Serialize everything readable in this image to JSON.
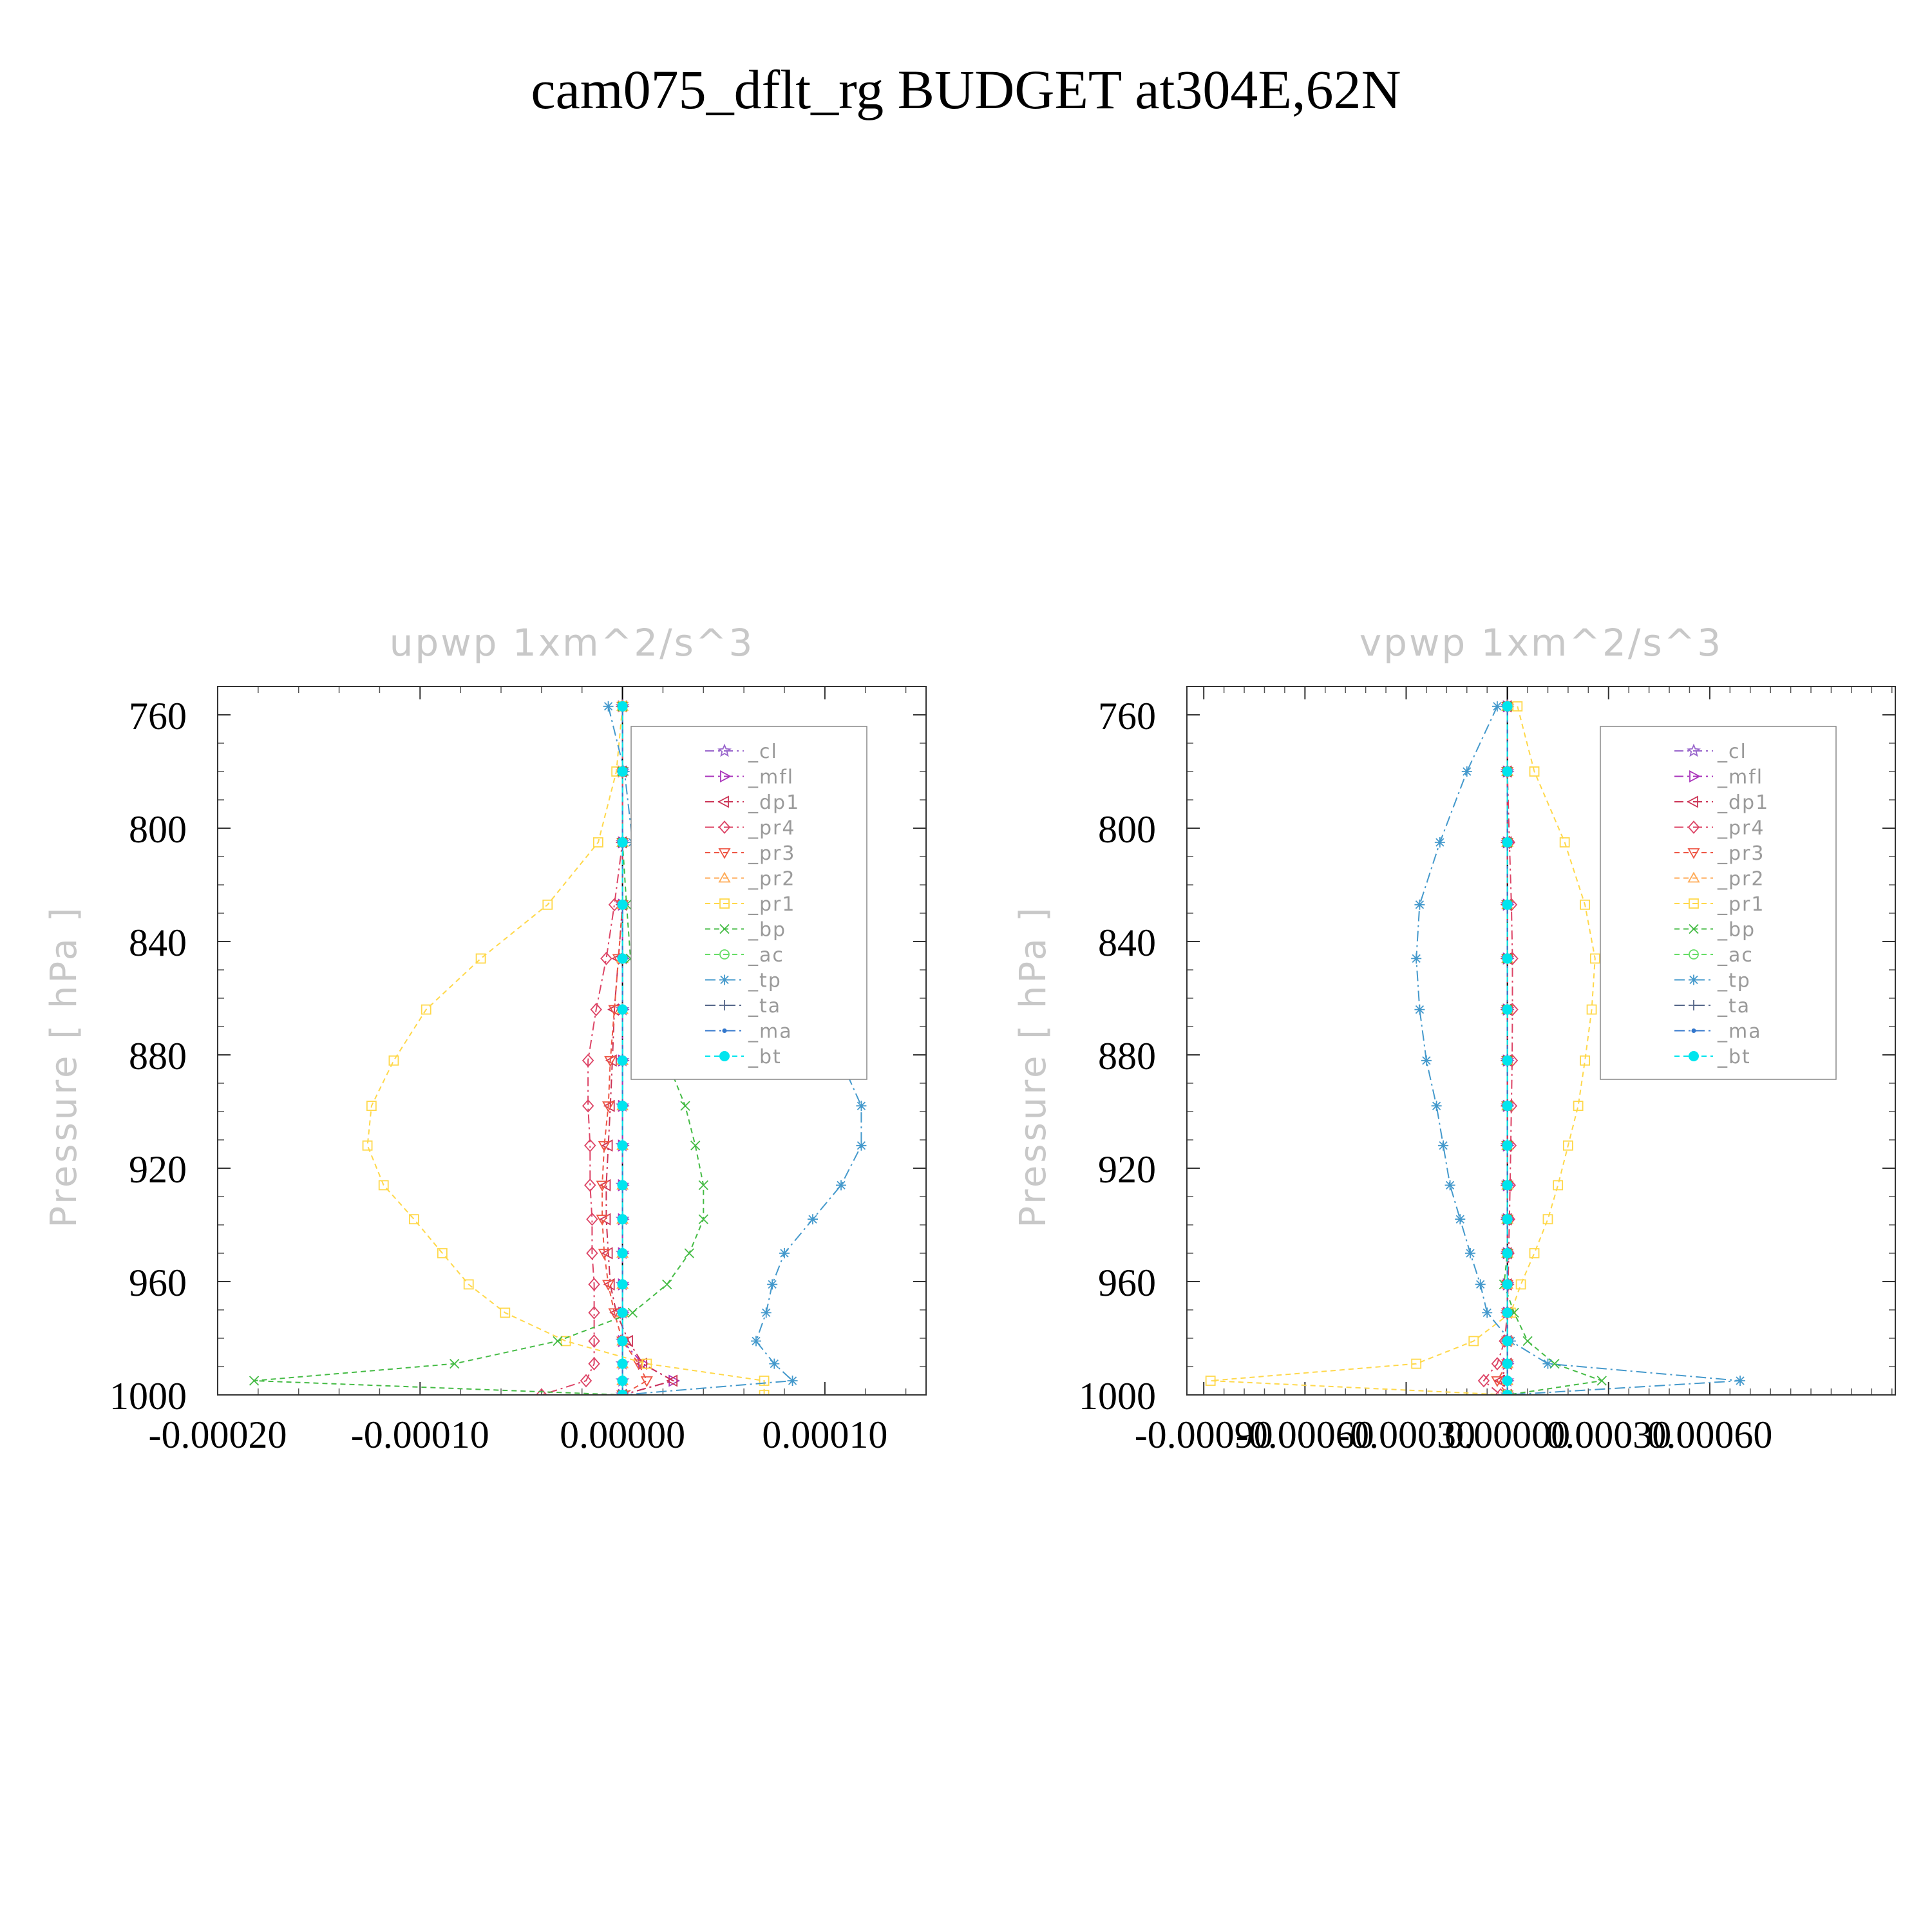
{
  "page_title": "cam075_dflt_rg  BUDGET at304E,62N",
  "colors": {
    "_cl": "#9966cc",
    "_mfl": "#aa33bb",
    "_dp1": "#cc3355",
    "_pr4": "#dd4466",
    "_pr3": "#ee5544",
    "_pr2": "#ffaa55",
    "_pr1": "#ffd84a",
    "_bp": "#44bb44",
    "_ac": "#66dd66",
    "_tp": "#4499cc",
    "_ta": "#556688",
    "_ma": "#3377cc",
    "_bt": "#00e5ee",
    "axis_title": "#c8c8c8"
  },
  "chart_data": [
    {
      "type": "line",
      "title": "upwp   1xm^2/s^3",
      "ylabel": "Pressure  [ hPa ]",
      "xlim": [
        -0.0002,
        0.00015
      ],
      "ylim": [
        1000,
        750
      ],
      "xticks": [
        -0.0002,
        -0.0001,
        0.0,
        0.0001
      ],
      "xtick_labels": [
        "-0.00020",
        "-0.00010",
        "0.00000",
        "0.00010"
      ],
      "yticks": [
        760,
        800,
        840,
        880,
        920,
        960,
        1000
      ],
      "ytick_labels": [
        "760",
        "800",
        "840",
        "880",
        "920",
        "960",
        "1000"
      ],
      "legend_position": "top-right",
      "levels": [
        757,
        780,
        805,
        827,
        846,
        864,
        882,
        898,
        912,
        926,
        938,
        950,
        961,
        971,
        981,
        989,
        995,
        1000
      ],
      "series": [
        {
          "name": "_cl",
          "marker": "star",
          "values": [
            0,
            0,
            0,
            0,
            0,
            0,
            0,
            0,
            0,
            0,
            0,
            0,
            0,
            0,
            0,
            0,
            0,
            0
          ]
        },
        {
          "name": "_mfl",
          "marker": "tri-right",
          "values": [
            0,
            0,
            0,
            0,
            0,
            0,
            0,
            0,
            0,
            0,
            0,
            0,
            0,
            0,
            0,
            1e-05,
            2.5e-05,
            0
          ]
        },
        {
          "name": "_dp1",
          "marker": "tri-left",
          "values": [
            0,
            0,
            0,
            0,
            -2e-06,
            -4e-06,
            -5e-06,
            -6e-06,
            -7e-06,
            -8e-06,
            -8e-06,
            -7e-06,
            -6e-06,
            -3e-06,
            3e-06,
            1e-05,
            2.5e-05,
            0
          ]
        },
        {
          "name": "_pr4",
          "marker": "diamond",
          "values": [
            0,
            0,
            0,
            -4e-06,
            -8e-06,
            -1.3e-05,
            -1.7e-05,
            -1.7e-05,
            -1.6e-05,
            -1.6e-05,
            -1.5e-05,
            -1.5e-05,
            -1.4e-05,
            -1.4e-05,
            -1.4e-05,
            -1.4e-05,
            -1.8e-05,
            -4e-05
          ]
        },
        {
          "name": "_pr3",
          "marker": "tri-down",
          "values": [
            0,
            0,
            0,
            0,
            -2e-06,
            -4e-06,
            -6e-06,
            -7e-06,
            -9e-06,
            -1e-05,
            -1e-05,
            -9e-06,
            -7e-06,
            -4e-06,
            0,
            8e-06,
            1.2e-05,
            0
          ]
        },
        {
          "name": "_pr2",
          "marker": "tri-up",
          "values": [
            0,
            0,
            0,
            0,
            0,
            0,
            0,
            0,
            0,
            0,
            0,
            0,
            0,
            0,
            0,
            0,
            0,
            0
          ]
        },
        {
          "name": "_pr1",
          "marker": "square",
          "values": [
            0,
            -3e-06,
            -1.2e-05,
            -3.7e-05,
            -7e-05,
            -9.7e-05,
            -0.000113,
            -0.000124,
            -0.000126,
            -0.000118,
            -0.000103,
            -8.9e-05,
            -7.6e-05,
            -5.8e-05,
            -2.8e-05,
            1.2e-05,
            7e-05,
            7e-05
          ]
        },
        {
          "name": "_bp",
          "marker": "x",
          "values": [
            0,
            0,
            0,
            2e-06,
            4e-06,
            1.2e-05,
            2.2e-05,
            3.1e-05,
            3.6e-05,
            4e-05,
            4e-05,
            3.3e-05,
            2.2e-05,
            5e-06,
            -3.2e-05,
            -8.3e-05,
            -0.000182,
            0
          ]
        },
        {
          "name": "_ac",
          "marker": "circle",
          "values": [
            0,
            0,
            0,
            0,
            0,
            0,
            0,
            0,
            0,
            0,
            0,
            0,
            0,
            0,
            0,
            0,
            0,
            0
          ]
        },
        {
          "name": "_tp",
          "marker": "asterisk",
          "values": [
            -7e-06,
            1e-06,
            5e-06,
            2.9e-05,
            6.3e-05,
            9.2e-05,
            0.000108,
            0.000118,
            0.000118,
            0.000108,
            9.4e-05,
            8e-05,
            7.4e-05,
            7.1e-05,
            6.6e-05,
            7.5e-05,
            8.4e-05,
            0
          ]
        },
        {
          "name": "_ta",
          "marker": "plus",
          "values": [
            0,
            0,
            0,
            0,
            0,
            0,
            0,
            0,
            0,
            0,
            0,
            0,
            0,
            0,
            0,
            0,
            0,
            0
          ]
        },
        {
          "name": "_ma",
          "marker": "dot",
          "values": [
            0,
            0,
            0,
            0,
            0,
            0,
            0,
            0,
            0,
            0,
            0,
            0,
            0,
            0,
            0,
            0,
            0,
            0
          ]
        },
        {
          "name": "_bt",
          "marker": "filled-circle",
          "values": [
            0,
            0,
            0,
            0,
            0,
            0,
            0,
            0,
            0,
            0,
            0,
            0,
            0,
            0,
            0,
            0,
            0,
            0
          ]
        }
      ]
    },
    {
      "type": "line",
      "title": "vpwp   1xm^2/s^3",
      "ylabel": "Pressure  [ hPa ]",
      "xlim": [
        -0.00095,
        0.00115
      ],
      "ylim": [
        1000,
        750
      ],
      "xticks": [
        -0.0009,
        -0.0006,
        -0.0003,
        0.0,
        0.0003,
        0.0006
      ],
      "xtick_labels": [
        "-0.00090",
        "-0.00060",
        "-0.00030",
        "0.00000",
        "0.00030",
        "0.00060"
      ],
      "yticks": [
        760,
        800,
        840,
        880,
        920,
        960,
        1000
      ],
      "ytick_labels": [
        "760",
        "800",
        "840",
        "880",
        "920",
        "960",
        "1000"
      ],
      "legend_position": "top-right",
      "levels": [
        757,
        780,
        805,
        827,
        846,
        864,
        882,
        898,
        912,
        926,
        938,
        950,
        961,
        971,
        981,
        989,
        995,
        1000
      ],
      "series": [
        {
          "name": "_cl",
          "marker": "star",
          "values": [
            0,
            0,
            0,
            0,
            0,
            0,
            0,
            0,
            0,
            0,
            0,
            0,
            0,
            0,
            0,
            0,
            0,
            0
          ]
        },
        {
          "name": "_mfl",
          "marker": "tri-right",
          "values": [
            0,
            0,
            0,
            0,
            0,
            0,
            0,
            0,
            0,
            0,
            0,
            0,
            0,
            0,
            0,
            0,
            0,
            0
          ]
        },
        {
          "name": "_dp1",
          "marker": "tri-left",
          "values": [
            0,
            0,
            0,
            0,
            0,
            0,
            0,
            0,
            0,
            0,
            0,
            0,
            0,
            0,
            0,
            0,
            -2e-05,
            0
          ]
        },
        {
          "name": "_pr4",
          "marker": "diamond",
          "values": [
            0,
            0,
            6e-06,
            1.2e-05,
            1.5e-05,
            1.5e-05,
            1.4e-05,
            1.2e-05,
            1e-05,
            8e-06,
            6e-06,
            4e-06,
            2e-06,
            0,
            -8e-06,
            -3e-05,
            -7e-05,
            -2e-05
          ]
        },
        {
          "name": "_pr3",
          "marker": "tri-down",
          "values": [
            0,
            0,
            0,
            0,
            0,
            0,
            0,
            0,
            0,
            0,
            0,
            0,
            0,
            0,
            0,
            0,
            -3e-05,
            0
          ]
        },
        {
          "name": "_pr2",
          "marker": "tri-up",
          "values": [
            0,
            0,
            0,
            0,
            0,
            0,
            0,
            0,
            0,
            0,
            0,
            0,
            0,
            0,
            0,
            0,
            0,
            0
          ]
        },
        {
          "name": "_pr1",
          "marker": "square",
          "values": [
            3e-05,
            8e-05,
            0.00017,
            0.00023,
            0.00026,
            0.00025,
            0.00023,
            0.00021,
            0.00018,
            0.00015,
            0.00012,
            8e-05,
            4e-05,
            1e-05,
            -0.0001,
            -0.00027,
            -0.00088,
            0
          ]
        },
        {
          "name": "_bp",
          "marker": "x",
          "values": [
            0,
            0,
            0,
            0,
            0,
            0,
            0,
            0,
            0,
            0,
            0,
            0,
            -1e-05,
            2e-05,
            6e-05,
            0.00014,
            0.00028,
            0
          ]
        },
        {
          "name": "_ac",
          "marker": "circle",
          "values": [
            0,
            0,
            0,
            0,
            0,
            0,
            0,
            0,
            0,
            0,
            0,
            0,
            0,
            0,
            0,
            0,
            0,
            0
          ]
        },
        {
          "name": "_tp",
          "marker": "asterisk",
          "values": [
            -3e-05,
            -0.00012,
            -0.0002,
            -0.00026,
            -0.00027,
            -0.00026,
            -0.00024,
            -0.00021,
            -0.00019,
            -0.00017,
            -0.00014,
            -0.00011,
            -8e-05,
            -6e-05,
            1e-05,
            0.00012,
            0.00069,
            0
          ]
        },
        {
          "name": "_ta",
          "marker": "plus",
          "values": [
            0,
            0,
            0,
            0,
            0,
            0,
            0,
            0,
            0,
            0,
            0,
            0,
            0,
            0,
            0,
            0,
            0,
            0
          ]
        },
        {
          "name": "_ma",
          "marker": "dot",
          "values": [
            0,
            0,
            0,
            0,
            0,
            0,
            0,
            0,
            0,
            0,
            0,
            0,
            0,
            0,
            0,
            0,
            0,
            0
          ]
        },
        {
          "name": "_bt",
          "marker": "filled-circle",
          "values": [
            0,
            0,
            0,
            0,
            0,
            0,
            0,
            0,
            0,
            0,
            0,
            0,
            0,
            0,
            0,
            0,
            0,
            0
          ]
        }
      ]
    }
  ]
}
